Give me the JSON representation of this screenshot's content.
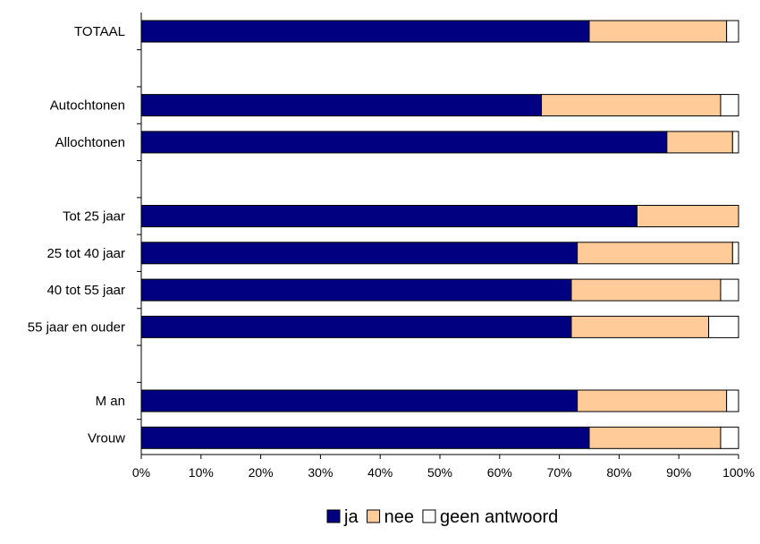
{
  "chart_data": {
    "type": "bar",
    "orientation": "horizontal",
    "stacked": true,
    "percent": true,
    "categories": [
      "TOTAAL",
      "",
      "Autochtonen",
      "Allochtonen",
      "",
      "Tot 25 jaar",
      "25 tot 40 jaar",
      "40 tot 55 jaar",
      "55 jaar en ouder",
      "",
      "M an",
      "Vrouw"
    ],
    "series": [
      {
        "name": "ja",
        "color": "#000080",
        "values": [
          75,
          null,
          67,
          88,
          null,
          83,
          73,
          72,
          72,
          null,
          73,
          75
        ]
      },
      {
        "name": "nee",
        "color": "#FFCC99",
        "values": [
          23,
          null,
          30,
          11,
          null,
          17,
          26,
          25,
          23,
          null,
          25,
          22
        ]
      },
      {
        "name": "geen antwoord",
        "color": "#FFFFFF",
        "values": [
          2,
          null,
          3,
          1,
          null,
          0,
          1,
          3,
          5,
          null,
          2,
          3
        ]
      }
    ],
    "xlim": [
      0,
      100
    ],
    "xticks": [
      "0%",
      "10%",
      "20%",
      "30%",
      "40%",
      "50%",
      "60%",
      "70%",
      "80%",
      "90%",
      "100%"
    ],
    "xlabel": "",
    "ylabel": "",
    "title": "",
    "grid": false,
    "legend_position": "bottom"
  }
}
